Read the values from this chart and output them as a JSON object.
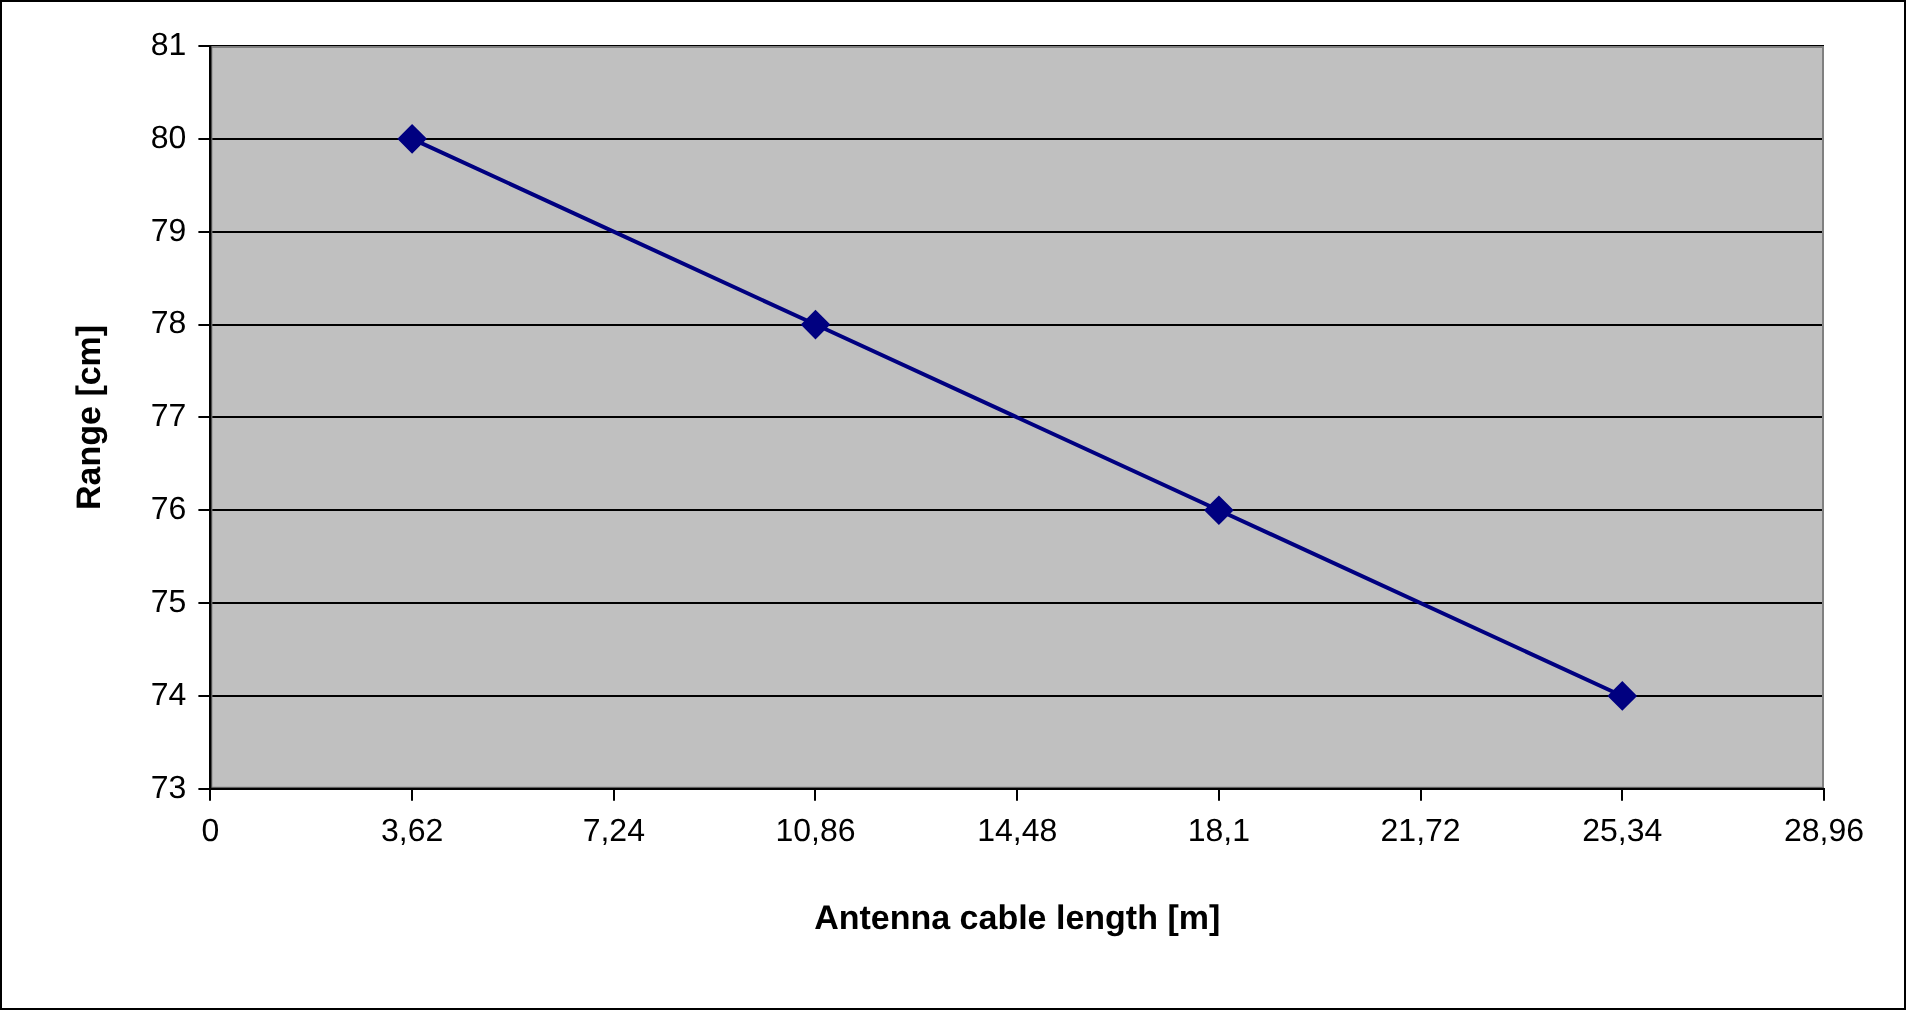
{
  "chart_data": {
    "type": "line",
    "xlabel": "Antenna cable length [m]",
    "ylabel": "Range [cm]",
    "x": [
      3.62,
      10.86,
      18.1,
      25.34
    ],
    "series": [
      {
        "color": "#000080",
        "values": [
          80,
          78,
          76,
          74
        ]
      }
    ],
    "xlim": [
      0,
      28.96
    ],
    "xticks": [
      0,
      {
        "value": 3.62,
        "label": "3,62"
      },
      {
        "value": 7.24,
        "label": "7,24"
      },
      {
        "value": 10.86,
        "label": "10,86"
      },
      {
        "value": 14.48,
        "label": "14,48"
      },
      {
        "value": 18.1,
        "label": "18,1"
      },
      {
        "value": 21.72,
        "label": "21,72"
      },
      {
        "value": 25.34,
        "label": "25,34"
      },
      {
        "value": 28.96,
        "label": "28,96"
      }
    ],
    "ylim": [
      73,
      81
    ],
    "yticks": [
      73,
      74,
      75,
      76,
      77,
      78,
      79,
      80,
      81
    ],
    "grid": "y",
    "marker": "diamond",
    "line_style": "solid",
    "legend": false
  }
}
